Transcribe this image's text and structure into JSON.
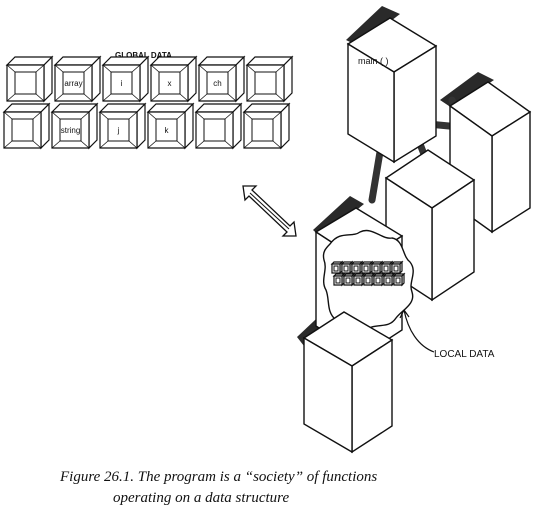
{
  "global_data": {
    "heading": "GLOBAL DATA",
    "row1": [
      "",
      "array",
      "i",
      "x",
      "ch",
      ""
    ],
    "row2": [
      "",
      "string",
      "j",
      "k",
      "",
      ""
    ]
  },
  "main_label": "main ( )",
  "local_data_label": "LOCAL DATA",
  "caption": {
    "line1": "Figure 26.1. The program is a “society” of functions",
    "line2": "operating on a data structure"
  }
}
